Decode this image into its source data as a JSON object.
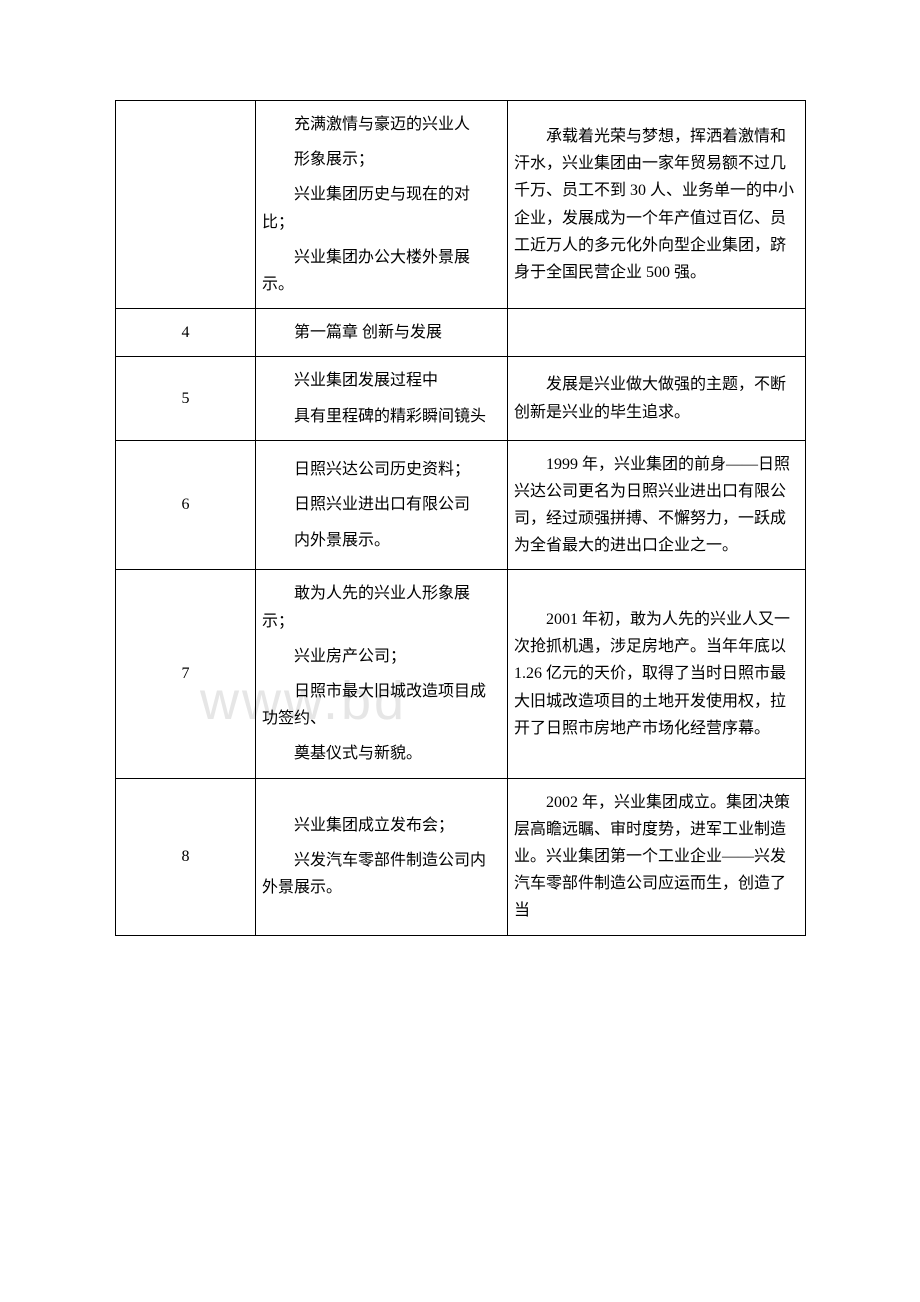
{
  "watermark": "www.bd",
  "rows": [
    {
      "num": "",
      "col2": [
        "充满激情与豪迈的兴业人",
        "形象展示；",
        "兴业集团历史与现在的对比；",
        "兴业集团办公大楼外景展示。"
      ],
      "col3": [
        "承载着光荣与梦想，挥洒着激情和汗水，兴业集团由一家年贸易额不过几千万、员工不到 30 人、业务单一的中小企业，发展成为一个年产值过百亿、员工近万人的多元化外向型企业集团，跻身于全国民营企业 500 强。"
      ]
    },
    {
      "num": "4",
      "col2": [
        "第一篇章 创新与发展"
      ],
      "col3": []
    },
    {
      "num": "5",
      "col2": [
        "兴业集团发展过程中",
        "具有里程碑的精彩瞬间镜头"
      ],
      "col3": [
        "发展是兴业做大做强的主题，不断创新是兴业的毕生追求。"
      ]
    },
    {
      "num": "6",
      "col2": [
        "日照兴达公司历史资料；",
        "日照兴业进出口有限公司",
        "内外景展示。"
      ],
      "col3": [
        "1999 年，兴业集团的前身——日照兴达公司更名为日照兴业进出口有限公司，经过顽强拼搏、不懈努力，一跃成为全省最大的进出口企业之一。"
      ]
    },
    {
      "num": "7",
      "col2": [
        "敢为人先的兴业人形象展示；",
        "兴业房产公司；",
        "日照市最大旧城改造项目成功签约、",
        "奠基仪式与新貌。"
      ],
      "col3": [
        "2001 年初，敢为人先的兴业人又一次抢抓机遇，涉足房地产。当年年底以 1.26 亿元的天价，取得了当时日照市最大旧城改造项目的土地开发使用权，拉开了日照市房地产市场化经营序幕。"
      ]
    },
    {
      "num": "8",
      "col2": [
        "兴业集团成立发布会；",
        "兴发汽车零部件制造公司内外景展示。"
      ],
      "col3": [
        "2002 年，兴业集团成立。集团决策层高瞻远瞩、审时度势，进军工业制造业。兴业集团第一个工业企业——兴发汽车零部件制造公司应运而生，创造了当"
      ]
    }
  ]
}
